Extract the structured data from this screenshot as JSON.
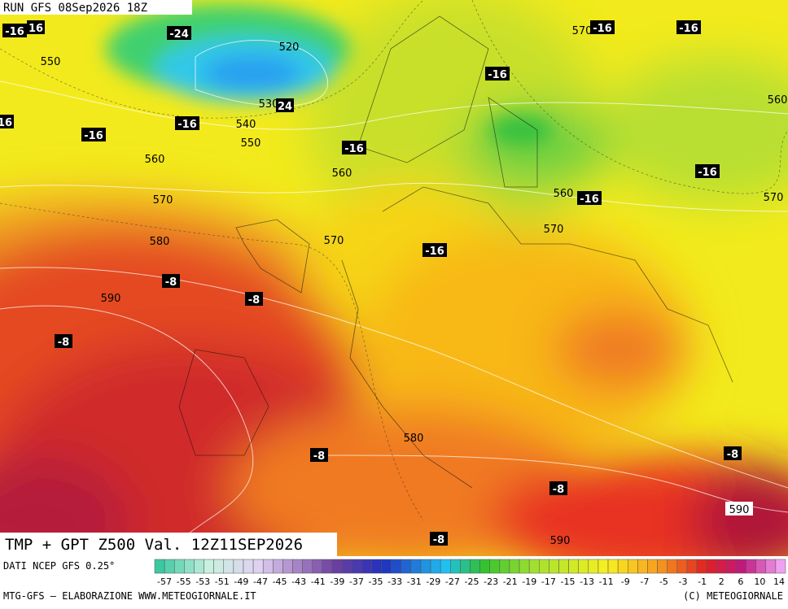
{
  "header": {
    "run": "RUN GFS 08Sep2026 18Z"
  },
  "title": "TMP + GPT Z500 Val. 12Z11SEP2026",
  "source": "DATI NCEP GFS 0.25°",
  "credit_left": "MTG-GFS — ELABORAZIONE WWW.METEOGIORNALE.IT",
  "credit_right": "(C) METEOGIORNALE",
  "legend": {
    "labels": [
      "-57",
      "-55",
      "-53",
      "-51",
      "-49",
      "-47",
      "-45",
      "-43",
      "-41",
      "-39",
      "-37",
      "-35",
      "-33",
      "-31",
      "-29",
      "-27",
      "-25",
      "-23",
      "-21",
      "-19",
      "-17",
      "-15",
      "-13",
      "-11",
      "-9",
      "-7",
      "-5",
      "-3",
      "-1",
      "2",
      "6",
      "10",
      "14"
    ]
  },
  "height_labels": [
    "520",
    "530",
    "540",
    "550",
    "550",
    "560",
    "560",
    "570",
    "580",
    "570",
    "590",
    "570",
    "560",
    "560",
    "570",
    "570",
    "580",
    "590",
    "590"
  ],
  "temp_labels": [
    "-16",
    "16",
    "-24",
    "24",
    "16",
    "-16",
    "-16",
    "-16",
    "-16",
    "-16",
    "-16",
    "-16",
    "-16",
    "-16",
    "-8",
    "-8",
    "-8",
    "-8",
    "-8",
    "-8",
    "-8"
  ]
}
